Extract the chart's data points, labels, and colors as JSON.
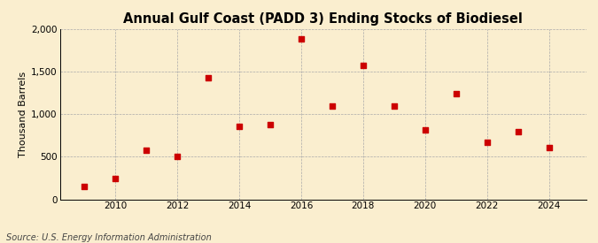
{
  "title": "Annual Gulf Coast (PADD 3) Ending Stocks of Biodiesel",
  "ylabel": "Thousand Barrels",
  "source": "Source: U.S. Energy Information Administration",
  "years": [
    2009,
    2010,
    2011,
    2012,
    2013,
    2014,
    2015,
    2016,
    2017,
    2018,
    2019,
    2020,
    2021,
    2022,
    2023,
    2024
  ],
  "values": [
    150,
    240,
    580,
    500,
    1430,
    860,
    880,
    1890,
    1100,
    1570,
    1100,
    820,
    1240,
    670,
    790,
    610
  ],
  "marker_color": "#cc0000",
  "marker_size": 18,
  "background_color": "#faeecf",
  "grid_color": "#aaaaaa",
  "ylim": [
    0,
    2000
  ],
  "yticks": [
    0,
    500,
    1000,
    1500,
    2000
  ],
  "ytick_labels": [
    "0",
    "500",
    "1,000",
    "1,500",
    "2,000"
  ],
  "xlim": [
    2008.2,
    2025.2
  ],
  "xticks": [
    2010,
    2012,
    2014,
    2016,
    2018,
    2020,
    2022,
    2024
  ],
  "title_fontsize": 10.5,
  "label_fontsize": 8,
  "tick_fontsize": 7.5,
  "source_fontsize": 7
}
